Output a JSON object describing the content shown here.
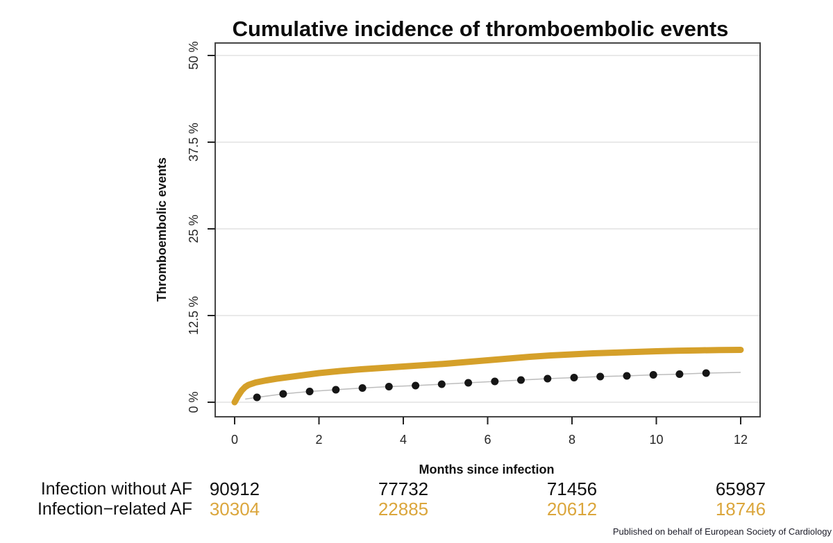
{
  "chart_data": {
    "type": "line",
    "title": "Cumulative incidence of thromboembolic events",
    "xlabel": "Months since infection",
    "ylabel": "Thromboembolic events",
    "xlim": [
      0,
      12
    ],
    "ylim": [
      0,
      52
    ],
    "grid": "horizontal",
    "colors": {
      "frame": "#454545",
      "gridline": "#e9e9e9",
      "tick": "#222222"
    },
    "xticks": [
      {
        "value": 0,
        "label": "0"
      },
      {
        "value": 2,
        "label": "2"
      },
      {
        "value": 4,
        "label": "4"
      },
      {
        "value": 6,
        "label": "6"
      },
      {
        "value": 8,
        "label": "8"
      },
      {
        "value": 10,
        "label": "10"
      },
      {
        "value": 12,
        "label": "12"
      }
    ],
    "yticks": [
      {
        "value": 0,
        "label": "0 %"
      },
      {
        "value": 12.5,
        "label": "12.5 %"
      },
      {
        "value": 25,
        "label": "25 %"
      },
      {
        "value": 37.5,
        "label": "37.5 %"
      },
      {
        "value": 50,
        "label": "50 %"
      }
    ],
    "series": [
      {
        "name": "Infection without AF",
        "style": "line-markers",
        "line_color": "#bdbdbd",
        "marker_color": "#161616",
        "points": [
          [
            0.25,
            0.45
          ],
          [
            0.53,
            0.7
          ],
          [
            1.15,
            1.2
          ],
          [
            1.78,
            1.55
          ],
          [
            2.4,
            1.8
          ],
          [
            3.03,
            2.05
          ],
          [
            3.66,
            2.25
          ],
          [
            4.29,
            2.4
          ],
          [
            4.91,
            2.6
          ],
          [
            5.54,
            2.8
          ],
          [
            6.17,
            3.0
          ],
          [
            6.79,
            3.2
          ],
          [
            7.42,
            3.4
          ],
          [
            8.05,
            3.55
          ],
          [
            8.67,
            3.7
          ],
          [
            9.3,
            3.8
          ],
          [
            9.93,
            3.95
          ],
          [
            10.55,
            4.05
          ],
          [
            11.18,
            4.2
          ],
          [
            12,
            4.3
          ]
        ],
        "marker_points": [
          [
            0.53,
            0.7
          ],
          [
            1.15,
            1.2
          ],
          [
            1.78,
            1.55
          ],
          [
            2.4,
            1.8
          ],
          [
            3.03,
            2.05
          ],
          [
            3.66,
            2.25
          ],
          [
            4.29,
            2.4
          ],
          [
            4.91,
            2.6
          ],
          [
            5.54,
            2.8
          ],
          [
            6.17,
            3.0
          ],
          [
            6.79,
            3.2
          ],
          [
            7.42,
            3.4
          ],
          [
            8.05,
            3.55
          ],
          [
            8.67,
            3.7
          ],
          [
            9.3,
            3.8
          ],
          [
            9.93,
            3.95
          ],
          [
            10.55,
            4.05
          ],
          [
            11.18,
            4.2
          ]
        ]
      },
      {
        "name": "Infection-related AF",
        "style": "thick-line",
        "color": "#d5a02a",
        "points": [
          [
            0,
            0
          ],
          [
            0.08,
            0.9
          ],
          [
            0.17,
            1.7
          ],
          [
            0.25,
            2.2
          ],
          [
            0.33,
            2.5
          ],
          [
            0.5,
            2.85
          ],
          [
            0.75,
            3.15
          ],
          [
            1,
            3.4
          ],
          [
            1.25,
            3.6
          ],
          [
            1.5,
            3.8
          ],
          [
            1.75,
            4.0
          ],
          [
            2,
            4.2
          ],
          [
            2.5,
            4.5
          ],
          [
            3,
            4.75
          ],
          [
            3.5,
            4.95
          ],
          [
            4,
            5.15
          ],
          [
            4.5,
            5.35
          ],
          [
            5,
            5.55
          ],
          [
            5.5,
            5.8
          ],
          [
            6,
            6.05
          ],
          [
            6.5,
            6.3
          ],
          [
            7,
            6.55
          ],
          [
            7.5,
            6.75
          ],
          [
            8,
            6.9
          ],
          [
            8.5,
            7.05
          ],
          [
            9,
            7.15
          ],
          [
            9.5,
            7.25
          ],
          [
            10,
            7.35
          ],
          [
            10.5,
            7.42
          ],
          [
            11,
            7.48
          ],
          [
            11.5,
            7.52
          ],
          [
            12,
            7.55
          ]
        ]
      }
    ]
  },
  "risk_table": {
    "months": [
      0,
      4,
      8,
      12
    ],
    "rows": [
      {
        "label": "Infection without AF",
        "value_color": "#111111",
        "values": [
          "90912",
          "77732",
          "71456",
          "65987"
        ]
      },
      {
        "label": "Infection−related AF",
        "value_color": "#dba63c",
        "values": [
          "30304",
          "22885",
          "20612",
          "18746"
        ]
      }
    ]
  },
  "footer": {
    "text": "Published on behalf of European Society of Cardiology"
  }
}
